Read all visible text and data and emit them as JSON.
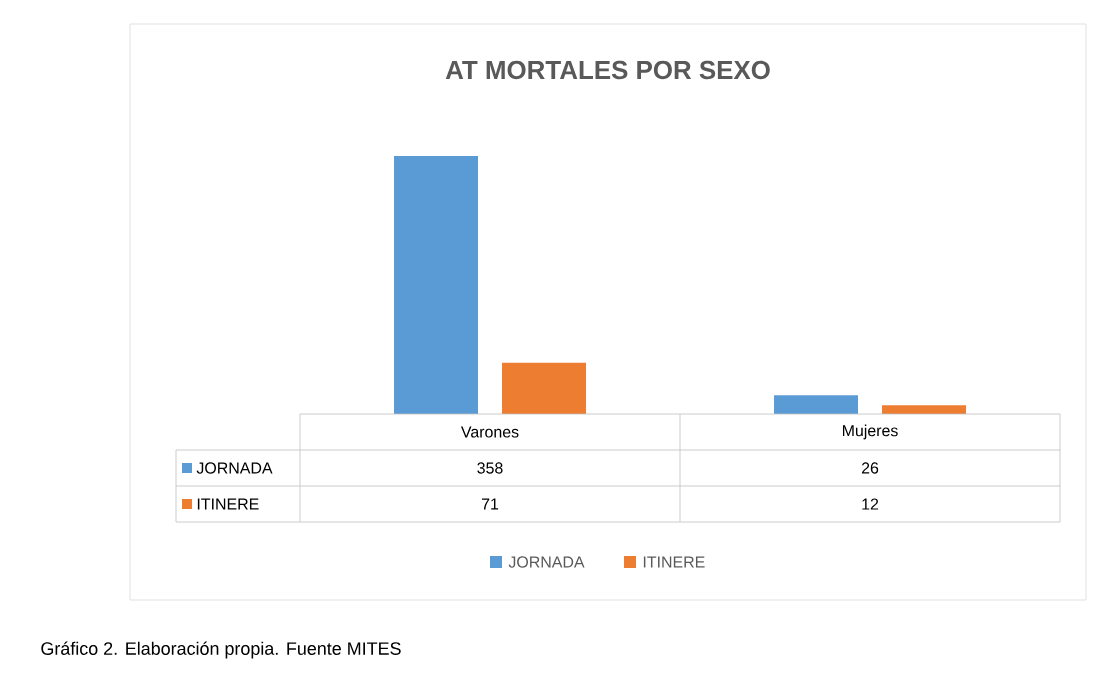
{
  "chart_data": {
    "type": "bar",
    "title": "AT MORTALES POR SEXO",
    "categories": [
      "Varones",
      "Mujeres"
    ],
    "series": [
      {
        "name": "JORNADA",
        "color": "#5b9bd5",
        "values": [
          358,
          26
        ]
      },
      {
        "name": "ITINERE",
        "color": "#ed7d31",
        "values": [
          71,
          12
        ]
      }
    ],
    "data_labels": true,
    "legend": "bottom",
    "annotations": [
      "Gráfico 2. Elaboración propia. Fuente MITES"
    ]
  }
}
